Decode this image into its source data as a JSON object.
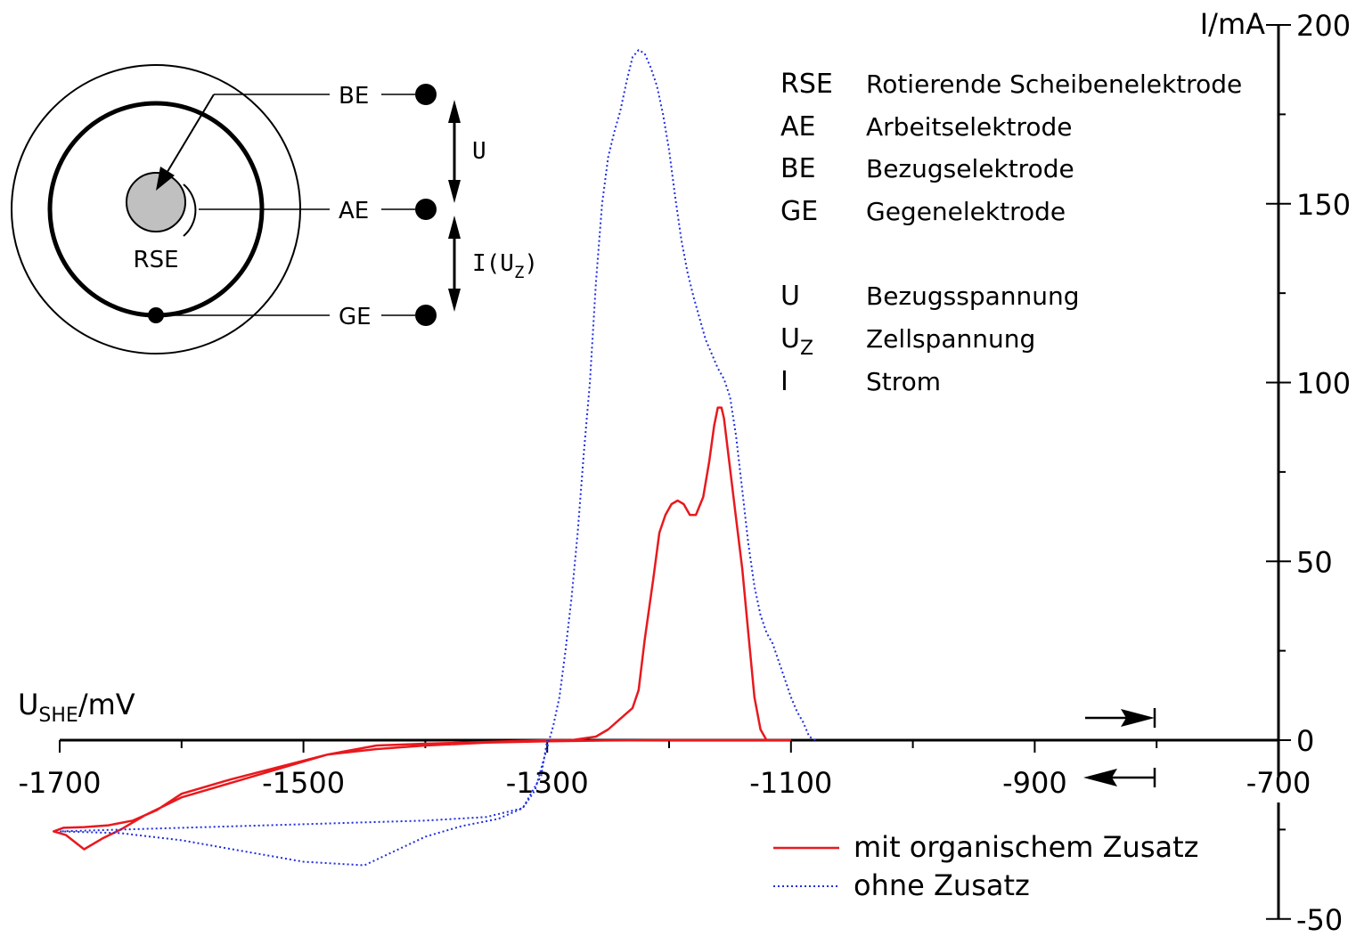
{
  "chart_data": {
    "type": "line",
    "x_axis": {
      "label_main": "U",
      "label_sub": "SHE",
      "label_unit": "/mV",
      "ticks": [
        -1700,
        -1500,
        -1300,
        -1100,
        -900,
        -700
      ],
      "range": [
        -1700,
        -700
      ]
    },
    "y_axis": {
      "label": "I/mA",
      "ticks": [
        200,
        150,
        100,
        50,
        0,
        -50
      ],
      "range": [
        -50,
        200
      ]
    },
    "series": [
      {
        "name": "mit organischem Zusatz",
        "color": "#e8191e",
        "style": "solid",
        "points": [
          [
            -1100,
            0
          ],
          [
            -1120,
            0
          ],
          [
            -1125,
            3
          ],
          [
            -1130,
            12
          ],
          [
            -1135,
            30
          ],
          [
            -1140,
            48
          ],
          [
            -1145,
            62
          ],
          [
            -1150,
            76
          ],
          [
            -1155,
            90
          ],
          [
            -1157,
            93
          ],
          [
            -1160,
            93
          ],
          [
            -1163,
            88
          ],
          [
            -1167,
            78
          ],
          [
            -1172,
            68
          ],
          [
            -1178,
            63
          ],
          [
            -1183,
            63
          ],
          [
            -1188,
            66
          ],
          [
            -1193,
            67
          ],
          [
            -1198,
            66
          ],
          [
            -1203,
            63
          ],
          [
            -1208,
            58
          ],
          [
            -1213,
            45
          ],
          [
            -1220,
            28
          ],
          [
            -1225,
            14
          ],
          [
            -1230,
            9
          ],
          [
            -1240,
            6
          ],
          [
            -1250,
            3
          ],
          [
            -1260,
            1
          ],
          [
            -1280,
            0
          ],
          [
            -1300,
            0
          ],
          [
            -1350,
            -0.5
          ],
          [
            -1400,
            -1
          ],
          [
            -1440,
            -1.5
          ],
          [
            -1480,
            -4
          ],
          [
            -1520,
            -8
          ],
          [
            -1560,
            -12
          ],
          [
            -1600,
            -16
          ],
          [
            -1630,
            -21
          ],
          [
            -1650,
            -25
          ],
          [
            -1665,
            -27.5
          ],
          [
            -1680,
            -30.5
          ],
          [
            -1695,
            -26.5
          ],
          [
            -1705,
            -25.5
          ],
          [
            -1697,
            -24.5
          ],
          [
            -1680,
            -24.3
          ],
          [
            -1660,
            -23.8
          ],
          [
            -1640,
            -22.5
          ],
          [
            -1620,
            -19.5
          ],
          [
            -1600,
            -15
          ],
          [
            -1560,
            -11
          ],
          [
            -1520,
            -7.5
          ],
          [
            -1480,
            -4
          ],
          [
            -1440,
            -2.5
          ],
          [
            -1400,
            -1.5
          ],
          [
            -1350,
            -0.7
          ],
          [
            -1300,
            -0.3
          ],
          [
            -1250,
            -0.1
          ],
          [
            -1200,
            0
          ],
          [
            -1150,
            0
          ],
          [
            -1100,
            0
          ]
        ]
      },
      {
        "name": "ohne Zusatz",
        "color": "#1f2ee0",
        "style": "dotted",
        "points": [
          [
            -1080,
            0
          ],
          [
            -1085,
            1
          ],
          [
            -1090,
            5
          ],
          [
            -1095,
            8
          ],
          [
            -1100,
            12
          ],
          [
            -1105,
            17
          ],
          [
            -1110,
            22
          ],
          [
            -1115,
            27
          ],
          [
            -1120,
            30
          ],
          [
            -1125,
            35
          ],
          [
            -1130,
            43
          ],
          [
            -1135,
            55
          ],
          [
            -1140,
            70
          ],
          [
            -1145,
            85
          ],
          [
            -1150,
            96
          ],
          [
            -1155,
            101
          ],
          [
            -1160,
            104
          ],
          [
            -1165,
            108
          ],
          [
            -1170,
            112
          ],
          [
            -1175,
            118
          ],
          [
            -1180,
            124
          ],
          [
            -1185,
            131
          ],
          [
            -1190,
            140
          ],
          [
            -1195,
            152
          ],
          [
            -1200,
            165
          ],
          [
            -1205,
            175
          ],
          [
            -1210,
            183
          ],
          [
            -1215,
            188
          ],
          [
            -1220,
            192
          ],
          [
            -1225,
            193
          ],
          [
            -1230,
            191
          ],
          [
            -1235,
            184
          ],
          [
            -1240,
            176
          ],
          [
            -1245,
            170
          ],
          [
            -1250,
            163
          ],
          [
            -1255,
            150
          ],
          [
            -1260,
            128
          ],
          [
            -1265,
            100
          ],
          [
            -1270,
            80
          ],
          [
            -1275,
            58
          ],
          [
            -1280,
            40
          ],
          [
            -1285,
            25
          ],
          [
            -1290,
            12
          ],
          [
            -1295,
            4
          ],
          [
            -1300,
            -2
          ],
          [
            -1305,
            -8
          ],
          [
            -1310,
            -14
          ],
          [
            -1320,
            -19
          ],
          [
            -1340,
            -22
          ],
          [
            -1370,
            -24
          ],
          [
            -1400,
            -27
          ],
          [
            -1450,
            -35
          ],
          [
            -1500,
            -34
          ],
          [
            -1550,
            -31
          ],
          [
            -1600,
            -28
          ],
          [
            -1650,
            -26
          ],
          [
            -1700,
            -25.5
          ],
          [
            -1650,
            -25
          ],
          [
            -1600,
            -24.5
          ],
          [
            -1550,
            -24
          ],
          [
            -1500,
            -23.5
          ],
          [
            -1450,
            -23
          ],
          [
            -1400,
            -22.5
          ],
          [
            -1350,
            -21.5
          ],
          [
            -1320,
            -19
          ],
          [
            -1305,
            -10
          ],
          [
            -1300,
            0
          ]
        ]
      }
    ],
    "legend": {
      "position": "bottom-right",
      "entries": [
        "mit organischem Zusatz",
        "ohne Zusatz"
      ]
    },
    "definitions": [
      {
        "symbol": "RSE",
        "text": "Rotierende Scheibenelektrode"
      },
      {
        "symbol": "AE",
        "text": "Arbeitselektrode"
      },
      {
        "symbol": "BE",
        "text": "Bezugselektrode"
      },
      {
        "symbol": "GE",
        "text": "Gegenelektrode"
      },
      {
        "symbol": "U",
        "text": "Bezugsspannung"
      },
      {
        "symbol": "U",
        "symbol_sub": "Z",
        "text": "Zellspannung"
      },
      {
        "symbol": "I",
        "text": "Strom"
      }
    ],
    "diagram": {
      "center_label": "RSE",
      "electrodes": [
        "BE",
        "AE",
        "GE"
      ],
      "voltage_label": "U",
      "current_label_main": "I(U",
      "current_label_sub": "Z",
      "current_label_close": ")"
    }
  }
}
